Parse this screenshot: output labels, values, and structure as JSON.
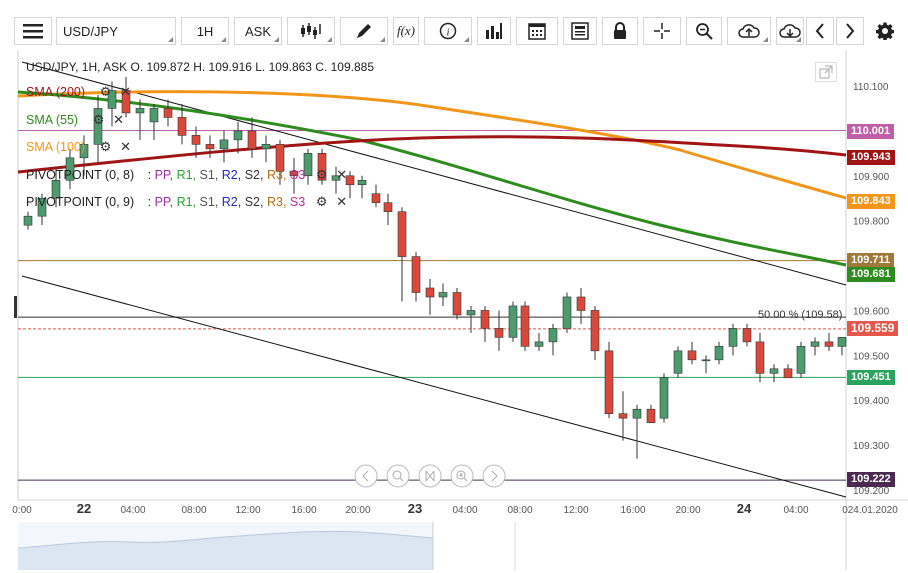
{
  "toolbar": {
    "symbol": "USD/JPY",
    "timeframe": "1H",
    "price_type": "ASK",
    "fx_label": "f(x)",
    "info_label": "i"
  },
  "chart": {
    "ohlc_line": "USD/JPY, 1H, ASK    O. 109.872 H. 109.916 L. 109.863 C. 109.885",
    "indicators": [
      {
        "label": "SMA (200)",
        "color": "#a11414"
      },
      {
        "label": "SMA (55)",
        "color": "#2e8b1e"
      },
      {
        "label": "SMA (100)",
        "color": "#f2961a"
      }
    ],
    "pivots": [
      {
        "label": "PIVOTPOINT (0, 8)",
        "sep": ": ",
        "pp": "PP,",
        "r1": "R1,",
        "s1": "S1,",
        "r2": "R2,",
        "s2": "S2,",
        "r3": "R3,",
        "s3": "S3"
      },
      {
        "label": "PIVOTPOINT (0, 9)",
        "sep": ": ",
        "pp": "PP,",
        "r1": "R1,",
        "s1": "S1,",
        "r2": "R2,",
        "s2": "S2,",
        "r3": "R3,",
        "s3": "S3"
      }
    ],
    "fib_label": "50.00 % (109.58)",
    "price_axis": [
      "110.100",
      "110.000",
      "109.900",
      "109.800",
      "109.700",
      "109.600",
      "109.500",
      "109.400",
      "109.300",
      "109.200"
    ],
    "time_axis": [
      "0:00",
      "22",
      "04:00",
      "08:00",
      "12:00",
      "16:00",
      "20:00",
      "23",
      "04:00",
      "08:00",
      "12:00",
      "16:00",
      "20:00",
      "24",
      "04:00",
      "024.01.2020"
    ],
    "tags": [
      {
        "value": "110.001",
        "color": "#c05fa8"
      },
      {
        "value": "109.943",
        "color": "#a11414"
      },
      {
        "value": "109.843",
        "color": "#f2961a"
      },
      {
        "value": "109.711",
        "color": "#a07838"
      },
      {
        "value": "109.681",
        "color": "#2e8b1e"
      },
      {
        "value": "109.559",
        "color": "#e4574a"
      },
      {
        "value": "109.451",
        "color": "#2ca25f"
      },
      {
        "value": "109.222",
        "color": "#4b2a52"
      }
    ]
  }
}
